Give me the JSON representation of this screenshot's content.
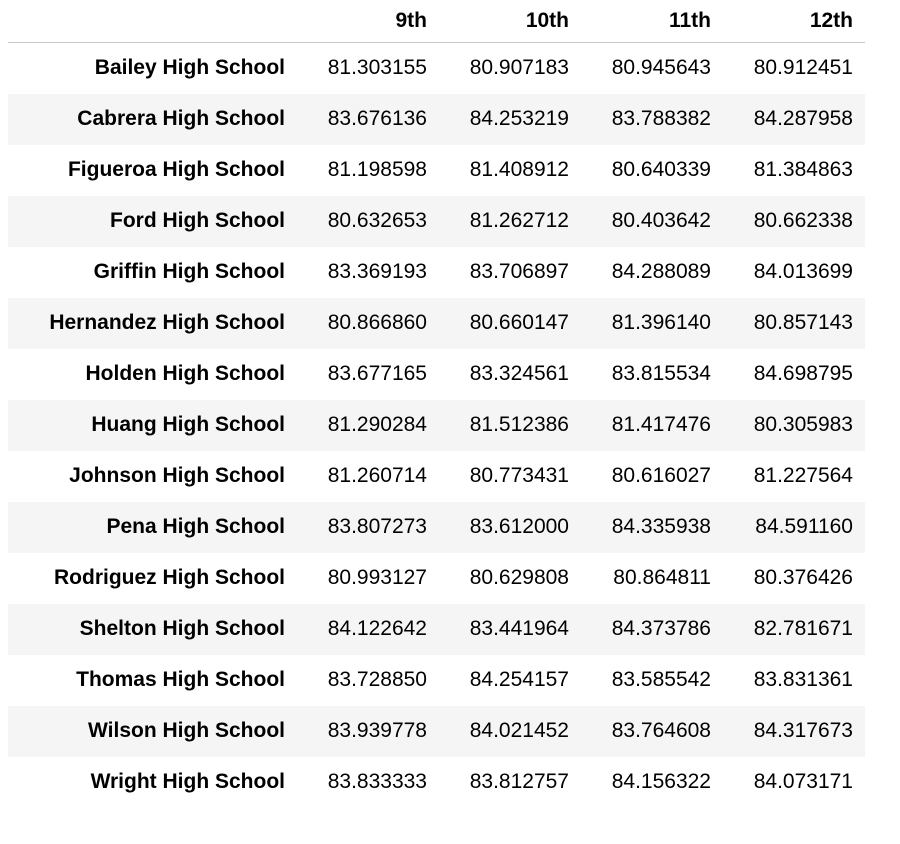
{
  "table": {
    "columns": [
      "9th",
      "10th",
      "11th",
      "12th"
    ],
    "rows": [
      {
        "school": "Bailey High School",
        "values": [
          "81.303155",
          "80.907183",
          "80.945643",
          "80.912451"
        ]
      },
      {
        "school": "Cabrera High School",
        "values": [
          "83.676136",
          "84.253219",
          "83.788382",
          "84.287958"
        ]
      },
      {
        "school": "Figueroa High School",
        "values": [
          "81.198598",
          "81.408912",
          "80.640339",
          "81.384863"
        ]
      },
      {
        "school": "Ford High School",
        "values": [
          "80.632653",
          "81.262712",
          "80.403642",
          "80.662338"
        ]
      },
      {
        "school": "Griffin High School",
        "values": [
          "83.369193",
          "83.706897",
          "84.288089",
          "84.013699"
        ]
      },
      {
        "school": "Hernandez High School",
        "values": [
          "80.866860",
          "80.660147",
          "81.396140",
          "80.857143"
        ]
      },
      {
        "school": "Holden High School",
        "values": [
          "83.677165",
          "83.324561",
          "83.815534",
          "84.698795"
        ]
      },
      {
        "school": "Huang High School",
        "values": [
          "81.290284",
          "81.512386",
          "81.417476",
          "80.305983"
        ]
      },
      {
        "school": "Johnson High School",
        "values": [
          "81.260714",
          "80.773431",
          "80.616027",
          "81.227564"
        ]
      },
      {
        "school": "Pena High School",
        "values": [
          "83.807273",
          "83.612000",
          "84.335938",
          "84.591160"
        ]
      },
      {
        "school": "Rodriguez High School",
        "values": [
          "80.993127",
          "80.629808",
          "80.864811",
          "80.376426"
        ]
      },
      {
        "school": "Shelton High School",
        "values": [
          "84.122642",
          "83.441964",
          "84.373786",
          "82.781671"
        ]
      },
      {
        "school": "Thomas High School",
        "values": [
          "83.728850",
          "84.254157",
          "83.585542",
          "83.831361"
        ]
      },
      {
        "school": "Wilson High School",
        "values": [
          "83.939778",
          "84.021452",
          "83.764608",
          "84.317673"
        ]
      },
      {
        "school": "Wright High School",
        "values": [
          "83.833333",
          "83.812757",
          "84.156322",
          "84.073171"
        ]
      }
    ]
  }
}
